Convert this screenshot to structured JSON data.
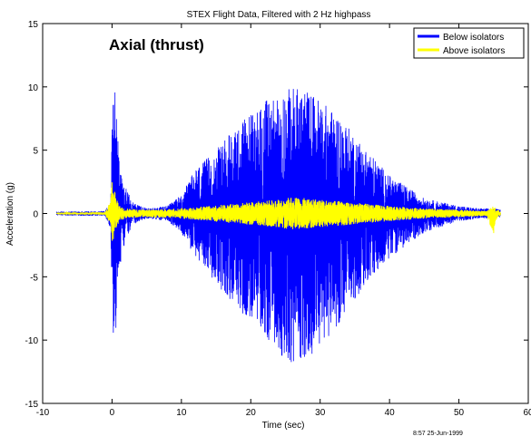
{
  "chart_data": {
    "type": "line",
    "title": "STEX Flight Data, Filtered with 2 Hz highpass",
    "xlabel": "Time (sec)",
    "ylabel": "Acceleration (g)",
    "xlim": [
      -10,
      60
    ],
    "ylim": [
      -15,
      15
    ],
    "xticks": [
      -10,
      0,
      10,
      20,
      30,
      40,
      50,
      60
    ],
    "yticks": [
      -15,
      -10,
      -5,
      0,
      5,
      10,
      15
    ],
    "grid": false,
    "legend_position": "top-right",
    "annotation": "Axial (thrust)",
    "timestamp": "8:57 25-Jun-1999",
    "series": [
      {
        "name": "Below isolators",
        "color": "#0000ff",
        "envelope_time": [
          -8,
          -1,
          -0.2,
          0,
          0.3,
          0.6,
          1,
          2,
          3,
          5,
          8,
          10,
          12,
          15,
          18,
          21,
          24,
          26,
          28,
          30,
          33,
          36,
          40,
          45,
          50,
          53,
          55,
          56
        ],
        "envelope_max": [
          0.15,
          0.2,
          1.2,
          8,
          11,
          9,
          4.5,
          2,
          0.9,
          0.4,
          0.6,
          1.5,
          3.5,
          5,
          7,
          8.5,
          9.5,
          10,
          9.8,
          9,
          7.5,
          5.5,
          3,
          1.2,
          0.6,
          0.4,
          0.4,
          0.3
        ],
        "envelope_min": [
          -0.15,
          -0.2,
          -1.2,
          -7,
          -11,
          -9,
          -4.5,
          -2,
          -0.9,
          -0.4,
          -0.6,
          -1.5,
          -3.5,
          -5.5,
          -7.5,
          -9,
          -11,
          -12,
          -11.5,
          -10.5,
          -8.5,
          -6,
          -3.5,
          -1.5,
          -0.6,
          -0.4,
          -0.4,
          -0.3
        ]
      },
      {
        "name": "Above isolators",
        "color": "#ffff00",
        "envelope_time": [
          -8,
          -1,
          -0.2,
          0,
          0.5,
          1,
          2,
          4,
          8,
          12,
          16,
          20,
          24,
          26,
          28,
          32,
          36,
          40,
          45,
          50,
          54,
          55,
          55.5,
          56
        ],
        "envelope_max": [
          0.08,
          0.1,
          1.0,
          2.5,
          1.5,
          0.6,
          0.4,
          0.3,
          0.35,
          0.5,
          0.7,
          0.9,
          1.1,
          1.3,
          1.2,
          1.0,
          0.8,
          0.6,
          0.4,
          0.3,
          0.2,
          0.6,
          0.3,
          0.2
        ],
        "envelope_min": [
          -0.08,
          -0.1,
          -1.0,
          -2.5,
          -1.5,
          -0.6,
          -0.4,
          -0.3,
          -0.35,
          -0.5,
          -0.7,
          -0.9,
          -1.1,
          -1.3,
          -1.2,
          -1.0,
          -0.8,
          -0.6,
          -0.4,
          -0.3,
          -0.2,
          -1.6,
          -0.3,
          -0.2
        ]
      }
    ]
  }
}
